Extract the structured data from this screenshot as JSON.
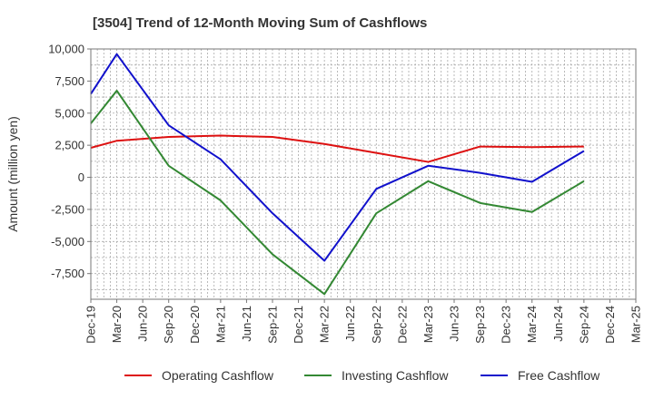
{
  "chart_data": {
    "type": "line",
    "title": "[3504]  Trend of 12-Month Moving Sum of Cashflows",
    "xlabel": "",
    "ylabel": "Amount (million yen)",
    "ylim": [
      -9500,
      10000
    ],
    "yticks": [
      10000,
      7500,
      5000,
      2500,
      0,
      -2500,
      -5000,
      -7500
    ],
    "ytick_labels": [
      "10,000",
      "7,500",
      "5,000",
      "2,500",
      "0",
      "-2,500",
      "-5,000",
      "-7,500"
    ],
    "categories": [
      "Dec-19",
      "Mar-20",
      "Jun-20",
      "Sep-20",
      "Dec-20",
      "Mar-21",
      "Jun-21",
      "Sep-21",
      "Dec-21",
      "Mar-22",
      "Jun-22",
      "Sep-22",
      "Dec-22",
      "Mar-23",
      "Jun-23",
      "Sep-23",
      "Dec-23",
      "Mar-24",
      "Jun-24",
      "Sep-24",
      "Dec-24",
      "Mar-25"
    ],
    "grid": true,
    "legend_position": "bottom",
    "series": [
      {
        "name": "Operating Cashflow",
        "color": "#dd1111",
        "points": [
          {
            "x": "Dec-19",
            "y": 2300
          },
          {
            "x": "Mar-20",
            "y": 2850
          },
          {
            "x": "Sep-20",
            "y": 3150
          },
          {
            "x": "Mar-21",
            "y": 3250
          },
          {
            "x": "Sep-21",
            "y": 3150
          },
          {
            "x": "Mar-22",
            "y": 2600
          },
          {
            "x": "Sep-22",
            "y": 1900
          },
          {
            "x": "Mar-23",
            "y": 1200
          },
          {
            "x": "Sep-23",
            "y": 2400
          },
          {
            "x": "Mar-24",
            "y": 2350
          },
          {
            "x": "Sep-24",
            "y": 2400
          }
        ]
      },
      {
        "name": "Investing Cashflow",
        "color": "#338833",
        "points": [
          {
            "x": "Dec-19",
            "y": 4200
          },
          {
            "x": "Mar-20",
            "y": 6750
          },
          {
            "x": "Sep-20",
            "y": 900
          },
          {
            "x": "Mar-21",
            "y": -1800
          },
          {
            "x": "Sep-21",
            "y": -6000
          },
          {
            "x": "Mar-22",
            "y": -9100
          },
          {
            "x": "Sep-22",
            "y": -2800
          },
          {
            "x": "Mar-23",
            "y": -300
          },
          {
            "x": "Sep-23",
            "y": -2000
          },
          {
            "x": "Mar-24",
            "y": -2700
          },
          {
            "x": "Sep-24",
            "y": -300
          }
        ]
      },
      {
        "name": "Free Cashflow",
        "color": "#1111cc",
        "points": [
          {
            "x": "Dec-19",
            "y": 6500
          },
          {
            "x": "Mar-20",
            "y": 9600
          },
          {
            "x": "Sep-20",
            "y": 4050
          },
          {
            "x": "Mar-21",
            "y": 1400
          },
          {
            "x": "Sep-21",
            "y": -2800
          },
          {
            "x": "Mar-22",
            "y": -6500
          },
          {
            "x": "Sep-22",
            "y": -900
          },
          {
            "x": "Mar-23",
            "y": 900
          },
          {
            "x": "Sep-23",
            "y": 350
          },
          {
            "x": "Mar-24",
            "y": -350
          },
          {
            "x": "Sep-24",
            "y": 2050
          }
        ]
      }
    ]
  }
}
